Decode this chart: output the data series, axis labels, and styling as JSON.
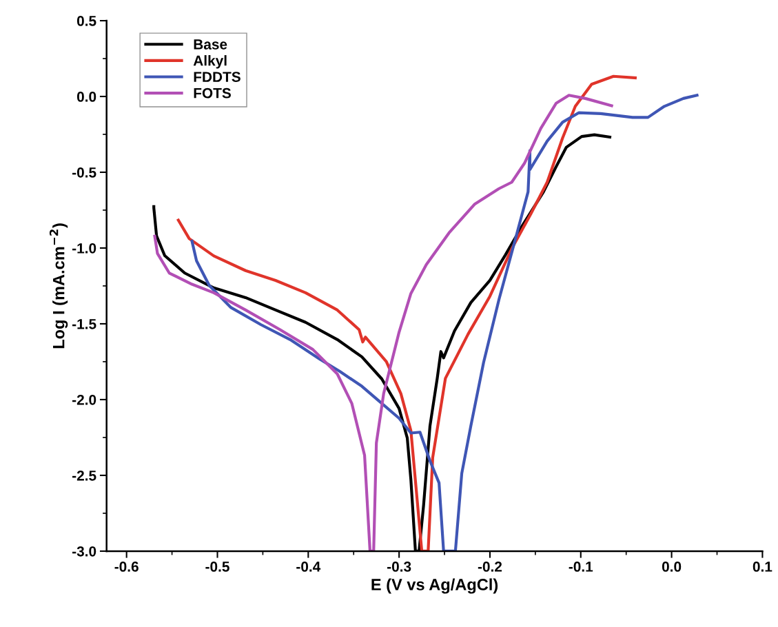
{
  "chart_data": {
    "type": "line",
    "xlabel": "E (V vs Ag/AgCl)",
    "ylabel": "Log I (mA.cm$^{−2}$)",
    "xlim": [
      -0.622,
      0.1
    ],
    "ylim": [
      -3.0,
      0.5
    ],
    "xticks": [
      {
        "value": -0.6,
        "label": "-0.6"
      },
      {
        "value": -0.5,
        "label": "-0.5"
      },
      {
        "value": -0.4,
        "label": "-0.4"
      },
      {
        "value": -0.3,
        "label": "-0.3"
      },
      {
        "value": -0.2,
        "label": "-0.2"
      },
      {
        "value": -0.1,
        "label": "-0.1"
      },
      {
        "value": 0.0,
        "label": "0.0"
      },
      {
        "value": 0.1,
        "label": "0.1"
      }
    ],
    "yticks": [
      {
        "value": -3.0,
        "label": "-3.0"
      },
      {
        "value": -2.5,
        "label": "-2.5"
      },
      {
        "value": -2.0,
        "label": "-2.0"
      },
      {
        "value": -1.5,
        "label": "-1.5"
      },
      {
        "value": -1.0,
        "label": "-1.0"
      },
      {
        "value": -0.5,
        "label": "-0.5"
      },
      {
        "value": 0.0,
        "label": "0.0"
      },
      {
        "value": 0.5,
        "label": "0.5"
      }
    ],
    "grid": false,
    "legend": "top left",
    "marker": "none",
    "line_style": "solid",
    "series": [
      {
        "name": "Base",
        "color": "#000000",
        "x": [
          -0.57,
          -0.57,
          -0.567,
          -0.558,
          -0.536,
          -0.504,
          -0.469,
          -0.436,
          -0.403,
          -0.368,
          -0.341,
          -0.319,
          -0.3,
          -0.291,
          -0.287,
          -0.282,
          -0.278,
          -0.273,
          -0.266,
          -0.258,
          -0.254,
          -0.251,
          -0.239,
          -0.221,
          -0.2,
          -0.183,
          -0.165,
          -0.141,
          -0.127,
          -0.116,
          -0.099,
          -0.085,
          -0.068
        ],
        "values": [
          -0.727,
          -0.735,
          -0.92,
          -1.05,
          -1.165,
          -1.263,
          -1.327,
          -1.409,
          -1.49,
          -1.604,
          -1.718,
          -1.864,
          -2.059,
          -2.253,
          -2.529,
          -3.0,
          -3.0,
          -2.696,
          -2.174,
          -1.86,
          -1.683,
          -1.725,
          -1.547,
          -1.36,
          -1.213,
          -1.046,
          -0.859,
          -0.629,
          -0.462,
          -0.336,
          -0.264,
          -0.253,
          -0.268
        ]
      },
      {
        "name": "Alkyl",
        "color": "#e0342a",
        "x": [
          -0.543,
          -0.531,
          -0.504,
          -0.469,
          -0.436,
          -0.403,
          -0.368,
          -0.344,
          -0.34,
          -0.337,
          -0.314,
          -0.298,
          -0.287,
          -0.275,
          -0.268,
          -0.263,
          -0.249,
          -0.224,
          -0.2,
          -0.176,
          -0.155,
          -0.137,
          -0.12,
          -0.106,
          -0.088,
          -0.064,
          -0.04
        ],
        "values": [
          -0.816,
          -0.938,
          -1.052,
          -1.149,
          -1.214,
          -1.295,
          -1.409,
          -1.539,
          -1.62,
          -1.588,
          -1.75,
          -1.961,
          -2.205,
          -3.0,
          -3.0,
          -2.383,
          -1.86,
          -1.568,
          -1.318,
          -1.005,
          -0.775,
          -0.566,
          -0.274,
          -0.065,
          0.081,
          0.133,
          0.123
        ]
      },
      {
        "name": "FDDTS",
        "color": "#3f56b5",
        "x": [
          -0.528,
          -0.523,
          -0.509,
          -0.485,
          -0.452,
          -0.42,
          -0.387,
          -0.365,
          -0.341,
          -0.322,
          -0.3,
          -0.287,
          -0.277,
          -0.266,
          -0.256,
          -0.251,
          -0.238,
          -0.231,
          -0.221,
          -0.207,
          -0.19,
          -0.172,
          -0.158,
          -0.156,
          -0.156,
          -0.137,
          -0.12,
          -0.102,
          -0.078,
          -0.043,
          -0.026,
          -0.008,
          0.013,
          0.028
        ],
        "values": [
          -0.955,
          -1.084,
          -1.247,
          -1.393,
          -1.506,
          -1.604,
          -1.734,
          -1.815,
          -1.912,
          -2.01,
          -2.123,
          -2.221,
          -2.215,
          -2.404,
          -2.55,
          -3.0,
          -3.0,
          -2.487,
          -2.174,
          -1.756,
          -1.339,
          -0.942,
          -0.629,
          -0.357,
          -0.483,
          -0.295,
          -0.17,
          -0.107,
          -0.113,
          -0.138,
          -0.138,
          -0.065,
          -0.013,
          0.008
        ]
      },
      {
        "name": "FOTS",
        "color": "#b24fb5",
        "x": [
          -0.569,
          -0.566,
          -0.553,
          -0.528,
          -0.504,
          -0.469,
          -0.431,
          -0.395,
          -0.368,
          -0.352,
          -0.338,
          -0.332,
          -0.328,
          -0.325,
          -0.317,
          -0.3,
          -0.287,
          -0.27,
          -0.245,
          -0.217,
          -0.19,
          -0.176,
          -0.162,
          -0.144,
          -0.127,
          -0.113,
          -0.095,
          -0.066
        ],
        "values": [
          -0.922,
          -1.036,
          -1.165,
          -1.239,
          -1.295,
          -1.409,
          -1.539,
          -1.669,
          -1.831,
          -2.026,
          -2.367,
          -3.0,
          -3.0,
          -2.286,
          -1.961,
          -1.555,
          -1.3,
          -1.109,
          -0.9,
          -0.712,
          -0.608,
          -0.566,
          -0.441,
          -0.211,
          -0.044,
          0.008,
          -0.013,
          -0.061
        ]
      }
    ]
  }
}
